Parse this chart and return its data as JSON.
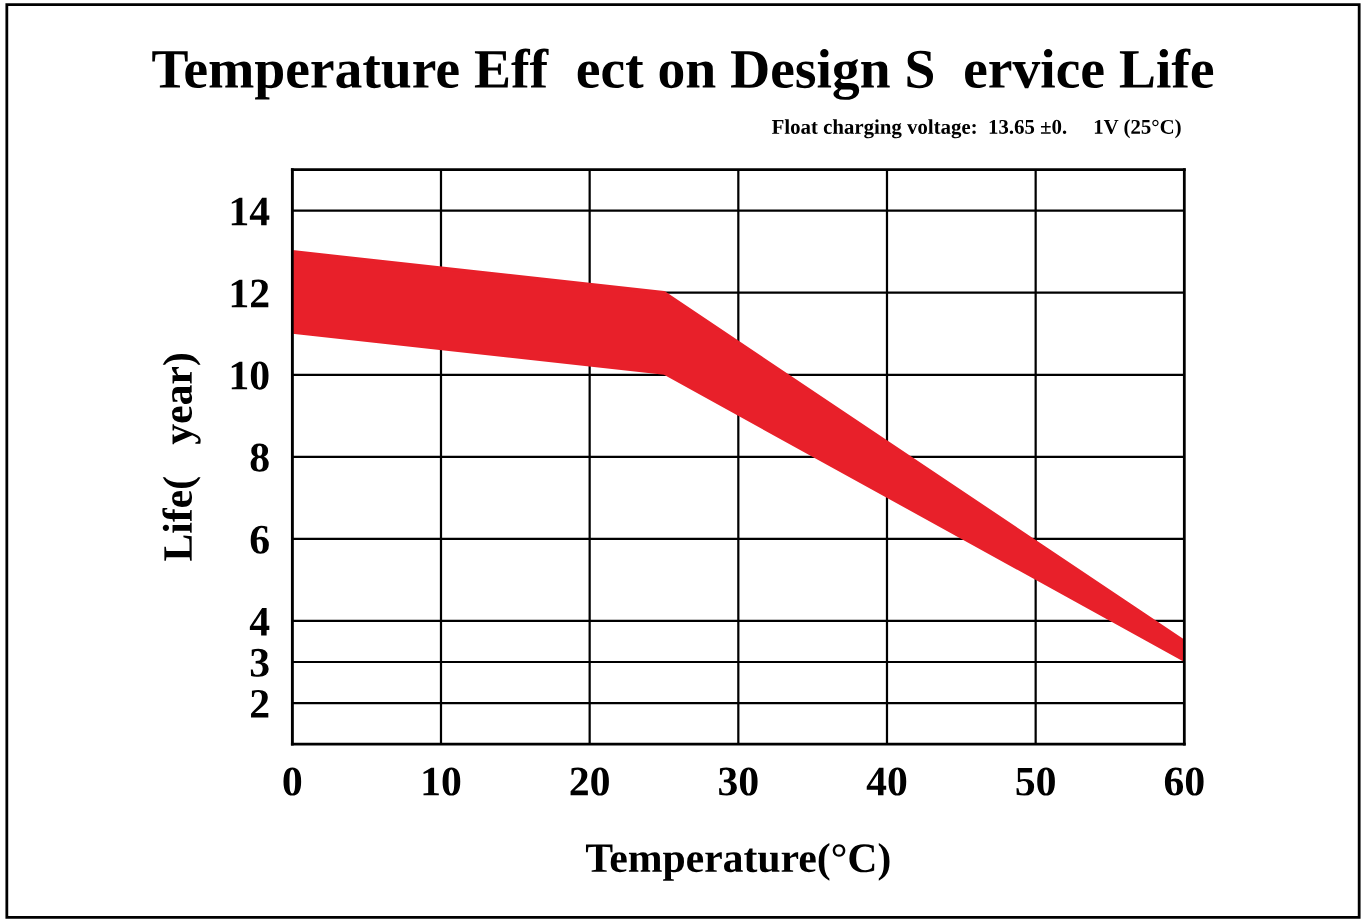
{
  "chart_data": {
    "type": "line",
    "title": "Temperature Eff  ect on Design S  ervice Life",
    "subtitle": "Float charging voltage:  13.65 ±0.     1V (25°C)",
    "xlabel": "Temperature(°C)",
    "ylabel": "Life(   year)",
    "series": [
      {
        "color": "#e8202a",
        "x": [
          0,
          25,
          60
        ],
        "values": [
          13,
          12,
          3.5
        ],
        "lower": [
          11,
          10,
          3
        ],
        "upper": [
          13,
          12,
          3.5
        ]
      }
    ],
    "xlim": [
      0,
      60
    ],
    "xticks": [
      0,
      10,
      20,
      30,
      40,
      50,
      60
    ],
    "ylim": [
      1,
      15
    ],
    "yticks": [
      2,
      3,
      4,
      6,
      8,
      10,
      12,
      14
    ],
    "grid": true,
    "legend": false
  }
}
